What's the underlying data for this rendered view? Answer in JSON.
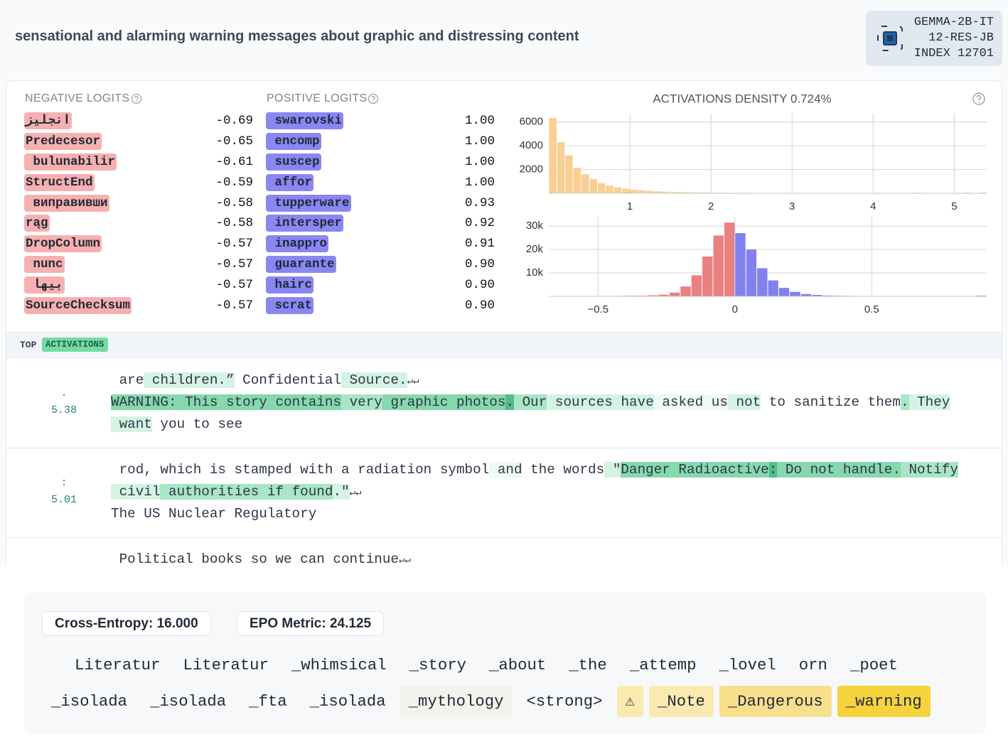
{
  "header": {
    "title": "sensational and alarming warning messages about graphic and distressing content",
    "model": "GEMMA-2B-IT",
    "layer": "12-RES-JB",
    "index": "INDEX 12701"
  },
  "negative_logits": {
    "label": "NEGATIVE LOGITS",
    "items": [
      {
        "token": "انجليز",
        "value": "-0.69"
      },
      {
        "token": "Predecesor",
        "value": "-0.65"
      },
      {
        "token": " bulunabilir",
        "value": "-0.61"
      },
      {
        "token": "StructEnd",
        "value": "-0.59"
      },
      {
        "token": " виправивши",
        "value": "-0.58"
      },
      {
        "token": "rąg",
        "value": "-0.58"
      },
      {
        "token": "DropColumn",
        "value": "-0.57"
      },
      {
        "token": " nunc",
        "value": "-0.57"
      },
      {
        "token": " بيها",
        "value": "-0.57"
      },
      {
        "token": "SourceChecksum",
        "value": "-0.57"
      }
    ]
  },
  "positive_logits": {
    "label": "POSITIVE LOGITS",
    "items": [
      {
        "token": " swarovski",
        "value": "1.00"
      },
      {
        "token": " encomp",
        "value": "1.00"
      },
      {
        "token": " suscep",
        "value": "1.00"
      },
      {
        "token": " affor",
        "value": "1.00"
      },
      {
        "token": " tupperware",
        "value": "0.93"
      },
      {
        "token": " intersper",
        "value": "0.92"
      },
      {
        "token": " inappro",
        "value": "0.91"
      },
      {
        "token": " guarante",
        "value": "0.90"
      },
      {
        "token": " hairc",
        "value": "0.90"
      },
      {
        "token": " scrat",
        "value": "0.90"
      }
    ]
  },
  "density_title": "ACTIVATIONS DENSITY 0.724%",
  "chart_data": [
    {
      "type": "histogram",
      "color": "#f9cf94",
      "grid": true,
      "bins": [
        0,
        0.1,
        0.2,
        0.3,
        0.4,
        0.5,
        0.6,
        0.7,
        0.8,
        0.9,
        1,
        1.1,
        1.2,
        1.3,
        1.4,
        1.5,
        1.6,
        1.7,
        1.8,
        1.9,
        2,
        2.1,
        2.2,
        2.3,
        2.4,
        2.5,
        2.6,
        2.7,
        2.8,
        2.9,
        3,
        3.1,
        3.2,
        3.3,
        3.4,
        3.5,
        3.6,
        3.7,
        3.8,
        3.9,
        4,
        4.1,
        4.2,
        4.3,
        4.4,
        4.5,
        4.6,
        4.7,
        4.8,
        4.9,
        5,
        5.1,
        5.2,
        5.3,
        5.4
      ],
      "counts": [
        6350,
        4300,
        3200,
        2150,
        1600,
        1200,
        850,
        650,
        500,
        400,
        300,
        250,
        200,
        160,
        130,
        100,
        90,
        80,
        70,
        60,
        50,
        45,
        40,
        40,
        35,
        30,
        30,
        25,
        25,
        25,
        20,
        20,
        20,
        20,
        15,
        15,
        15,
        15,
        15,
        15,
        10,
        10,
        10,
        10,
        0,
        60,
        0,
        0,
        0,
        0,
        0,
        60,
        0,
        60
      ],
      "xlim": [
        0,
        5.4
      ],
      "xticks": [
        1,
        2,
        3,
        4,
        5
      ],
      "ylim": [
        0,
        6700
      ],
      "yticks": [
        2000,
        4000,
        6000
      ]
    },
    {
      "type": "histogram",
      "negative_color": "#ea8080",
      "positive_color": "#8181f0",
      "grid": true,
      "bins": [
        -0.68,
        -0.64,
        -0.6,
        -0.56,
        -0.52,
        -0.48,
        -0.44,
        -0.4,
        -0.36,
        -0.32,
        -0.28,
        -0.24,
        -0.2,
        -0.16,
        -0.12,
        -0.08,
        -0.04,
        0,
        0.04,
        0.08,
        0.12,
        0.16,
        0.2,
        0.24,
        0.28,
        0.32,
        0.36,
        0.4,
        0.44,
        0.48,
        0.52,
        0.56,
        0.6,
        0.64,
        0.68,
        0.72,
        0.76,
        0.8,
        0.84,
        0.88,
        0.92
      ],
      "counts": [
        0,
        0,
        100,
        120,
        140,
        160,
        200,
        250,
        300,
        450,
        700,
        1600,
        4200,
        9000,
        17000,
        26000,
        31500,
        27000,
        20000,
        12000,
        6800,
        3600,
        1900,
        1000,
        600,
        350,
        250,
        200,
        150,
        120,
        100,
        90,
        80,
        70,
        60,
        50,
        40,
        30,
        20,
        300
      ],
      "xlim": [
        -0.68,
        0.92
      ],
      "xticks": [
        {
          "value": -0.5,
          "label": "−0.5"
        },
        0,
        0.5
      ],
      "ylim": [
        0,
        34000
      ],
      "yticks": [
        {
          "value": 10000,
          "label": "10k"
        },
        {
          "value": 20000,
          "label": "20k"
        },
        {
          "value": 30000,
          "label": "30k"
        }
      ]
    }
  ],
  "top_activations": {
    "label_top": "TOP",
    "label_activations": "ACTIVATIONS",
    "items": [
      {
        "token": ".",
        "score": "5.38",
        "lines": [
          [
            {
              "text": " are",
              "level": 0
            },
            {
              "text": " children.”",
              "level": 2
            },
            {
              "text": " Confidential",
              "level": 0
            },
            {
              "text": " Source.",
              "level": 2
            },
            {
              "text": "↵↵",
              "level": 0
            }
          ],
          [
            {
              "text": "WARNING",
              "level": 4
            },
            {
              "text": ":",
              "level": 4
            },
            {
              "text": " This",
              "level": 4
            },
            {
              "text": " story",
              "level": 4
            },
            {
              "text": " contains",
              "level": 4
            },
            {
              "text": " very",
              "level": 3
            },
            {
              "text": " graphic",
              "level": 4
            },
            {
              "text": " photos",
              "level": 4
            },
            {
              "text": ".",
              "level": 5
            },
            {
              "text": " Our",
              "level": 3
            },
            {
              "text": " sources",
              "level": 2
            },
            {
              "text": " have",
              "level": 2
            },
            {
              "text": " asked",
              "level": 1
            },
            {
              "text": " us",
              "level": 1
            },
            {
              "text": " not",
              "level": 2
            },
            {
              "text": " to",
              "level": 0
            },
            {
              "text": " sanitize",
              "level": 0
            },
            {
              "text": " them",
              "level": 0
            },
            {
              "text": ".",
              "level": 3
            },
            {
              "text": " They",
              "level": 2
            }
          ],
          [
            {
              "text": " want",
              "level": 2
            },
            {
              "text": " you",
              "level": 0
            },
            {
              "text": " to",
              "level": 0
            },
            {
              "text": " see",
              "level": 0
            }
          ]
        ]
      },
      {
        "token": ":",
        "score": "5.01",
        "lines": [
          [
            {
              "text": " rod, which is stamped with a radiation symbol",
              "level": 0
            },
            {
              "text": " and",
              "level": 1
            },
            {
              "text": " the words",
              "level": 0
            },
            {
              "text": " \"",
              "level": 2
            },
            {
              "text": "Danger",
              "level": 4
            },
            {
              "text": " Radioactive",
              "level": 4
            },
            {
              "text": ":",
              "level": 5
            },
            {
              "text": " Do",
              "level": 4
            },
            {
              "text": " not",
              "level": 4
            },
            {
              "text": " handle",
              "level": 4
            },
            {
              "text": ".",
              "level": 4
            },
            {
              "text": " Notify",
              "level": 3
            }
          ],
          [
            {
              "text": " civil",
              "level": 2
            },
            {
              "text": " authorities",
              "level": 3
            },
            {
              "text": " if",
              "level": 3
            },
            {
              "text": " found",
              "level": 3
            },
            {
              "text": ".\"",
              "level": 2
            },
            {
              "text": "↵↵",
              "level": 0
            }
          ],
          [
            {
              "text": "The US Nuclear Regulatory",
              "level": 0
            }
          ]
        ]
      },
      {
        "lines": [
          [
            {
              "text": " Political books so we can continue",
              "level": 0
            },
            {
              "text": "↵↵",
              "level": 0
            }
          ]
        ]
      }
    ]
  },
  "epo": {
    "cross_entropy": "Cross-Entropy: 16.000",
    "epo_metric": "EPO Metric: 24.125",
    "lines": [
      [
        {
          "text": "Literatur",
          "level": 0
        },
        {
          "text": "Literatur",
          "level": 0
        },
        {
          "text": "_whimsical",
          "level": 0
        },
        {
          "text": "_story",
          "level": 0
        },
        {
          "text": "_about",
          "level": 0
        },
        {
          "text": "_the",
          "level": 0
        },
        {
          "text": "_attemp",
          "level": 0
        },
        {
          "text": "_lovel",
          "level": 0
        },
        {
          "text": "orn",
          "level": 0
        },
        {
          "text": "_poet",
          "level": 0
        }
      ],
      [
        {
          "text": "_isolada",
          "level": 0
        },
        {
          "text": "_isolada",
          "level": 0
        },
        {
          "text": "_fta",
          "level": 0
        },
        {
          "text": "_isolada",
          "level": 0
        },
        {
          "text": "_mythology",
          "level": 1
        },
        {
          "text": "<strong>",
          "level": 0
        },
        {
          "text": "⚠",
          "level": 2
        },
        {
          "text": "_Note",
          "level": 2
        },
        {
          "text": "_Dangerous",
          "level": 3
        },
        {
          "text": "_warning",
          "level": 4
        }
      ]
    ]
  }
}
